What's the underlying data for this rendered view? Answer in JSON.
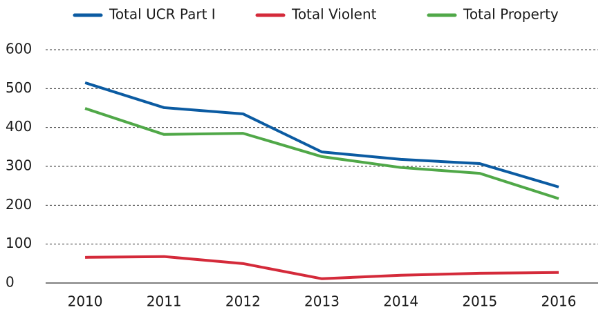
{
  "chart_data": {
    "type": "line",
    "categories": [
      "2010",
      "2011",
      "2012",
      "2013",
      "2014",
      "2015",
      "2016"
    ],
    "series": [
      {
        "name": "Total UCR Part I",
        "color": "#0b5ba2",
        "values": [
          515,
          451,
          435,
          337,
          318,
          307,
          247
        ]
      },
      {
        "name": "Total Violent",
        "color": "#d42a3a",
        "values": [
          66,
          68,
          50,
          11,
          20,
          25,
          27
        ]
      },
      {
        "name": "Total Property",
        "color": "#50a848",
        "values": [
          449,
          382,
          385,
          325,
          297,
          282,
          217
        ]
      }
    ],
    "ylim": [
      0,
      600
    ],
    "yticks": [
      0,
      100,
      200,
      300,
      400,
      500,
      600
    ],
    "grid": true,
    "legend": "top"
  }
}
